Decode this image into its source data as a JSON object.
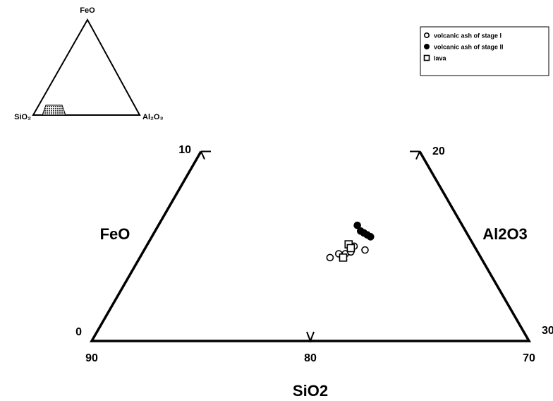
{
  "chart_data": {
    "type": "ternary",
    "axes": {
      "feo": "FeO",
      "al2o3": "Al2O3",
      "sio2": "SiO2"
    },
    "feo_ticks": [
      0,
      10
    ],
    "al2o3_ticks": [
      20,
      30
    ],
    "sio2_ticks": [
      90,
      80,
      70
    ],
    "inset_labels": {
      "top": "FeO",
      "left": "SiO₂",
      "right": "Al₂O₃"
    },
    "series": [
      {
        "name": "volcanic ash of stage I",
        "marker": "circle",
        "filled": false,
        "feo": [
          4.4,
          4.6,
          4.6,
          4.7,
          4.8,
          5.0
        ],
        "al2o3": [
          18.7,
          19.0,
          19.3,
          19.5,
          20.1,
          19.5
        ]
      },
      {
        "name": "volcanic ash of stage II",
        "marker": "circle",
        "filled": true,
        "feo": [
          6.1,
          5.8,
          5.7,
          5.6,
          5.5
        ],
        "al2o3": [
          19.1,
          19.4,
          19.6,
          19.8,
          20.0
        ]
      },
      {
        "name": "lava",
        "marker": "square",
        "filled": false,
        "feo": [
          5.1,
          4.9,
          4.4
        ],
        "al2o3": [
          19.2,
          19.4,
          19.3
        ]
      }
    ]
  }
}
